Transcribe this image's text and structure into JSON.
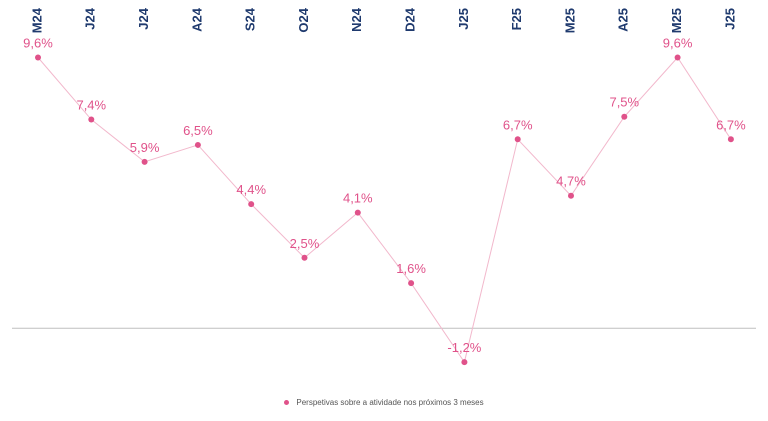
{
  "chart_data": {
    "type": "line",
    "categories": [
      "M24",
      "J24",
      "J24",
      "A24",
      "S24",
      "O24",
      "N24",
      "D24",
      "J25",
      "F25",
      "M25",
      "A25",
      "M25",
      "J25"
    ],
    "series": [
      {
        "name": "Perspetivas sobre a atividade nos próximos 3 meses",
        "values": [
          9.6,
          7.4,
          5.9,
          6.5,
          4.4,
          2.5,
          4.1,
          1.6,
          -1.2,
          6.7,
          4.7,
          7.5,
          9.6,
          6.7
        ],
        "labels": [
          "9,6%",
          "7,4%",
          "5,9%",
          "6,5%",
          "4,4%",
          "2,5%",
          "4,1%",
          "1,6%",
          "-1,2%",
          "6,7%",
          "4,7%",
          "7,5%",
          "9,6%",
          "6,7%"
        ],
        "color": "#e0528a"
      }
    ],
    "ylim": [
      -2.4,
      11.0
    ],
    "x_axis_position": "top",
    "tick_label_rotation": "vertical",
    "grid": false,
    "legend_position": "bottom",
    "colors": {
      "tick_labels": "#1f3a6e",
      "zero_line": "#bfbfbf",
      "series_line": "#f2b8cc"
    }
  }
}
